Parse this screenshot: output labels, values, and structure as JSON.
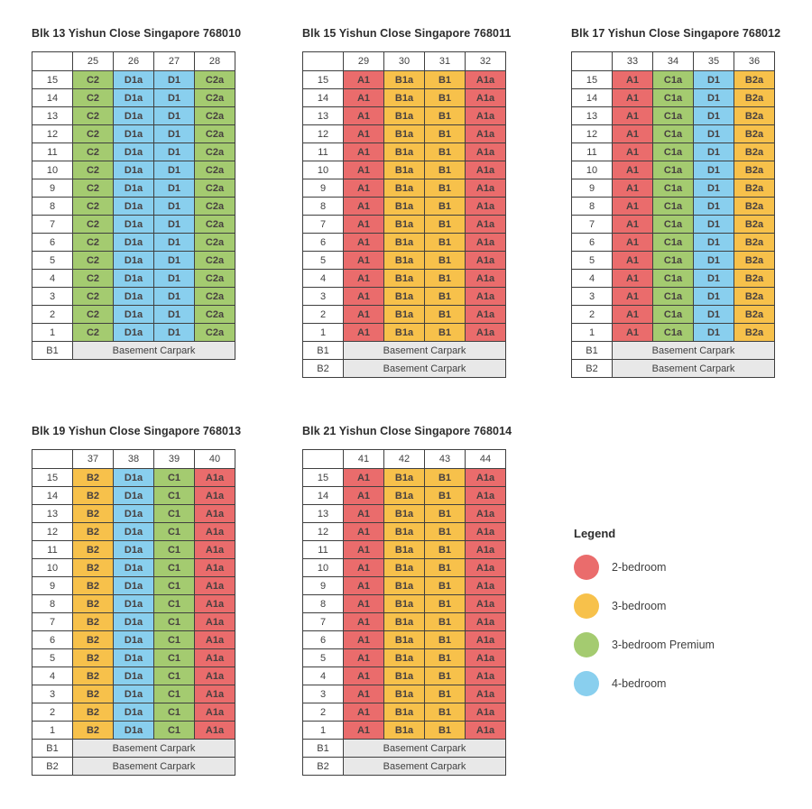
{
  "page": {
    "background": "#ffffff"
  },
  "palette": {
    "red": "#ea6c6c",
    "yellow": "#f7c14b",
    "green": "#a4cb70",
    "blue": "#89cfee",
    "carpark_gray": "#e8e8e8",
    "border": "#3f3f3f"
  },
  "floors": [
    "15",
    "14",
    "13",
    "12",
    "11",
    "10",
    "9",
    "8",
    "7",
    "6",
    "5",
    "4",
    "3",
    "2",
    "1"
  ],
  "basement_text": "Basement Carpark",
  "blocks": [
    {
      "title": "Blk 13 Yishun Close Singapore 768010",
      "stacks": [
        "25",
        "26",
        "27",
        "28"
      ],
      "unit_types": [
        "C2",
        "D1a",
        "D1",
        "C2a"
      ],
      "unit_colors": [
        "green",
        "blue",
        "blue",
        "green"
      ],
      "basement_levels": [
        "B1"
      ]
    },
    {
      "title": "Blk 15 Yishun Close Singapore 768011",
      "stacks": [
        "29",
        "30",
        "31",
        "32"
      ],
      "unit_types": [
        "A1",
        "B1a",
        "B1",
        "A1a"
      ],
      "unit_colors": [
        "red",
        "yellow",
        "yellow",
        "red"
      ],
      "basement_levels": [
        "B1",
        "B2"
      ]
    },
    {
      "title": "Blk 17 Yishun Close Singapore 768012",
      "stacks": [
        "33",
        "34",
        "35",
        "36"
      ],
      "unit_types": [
        "A1",
        "C1a",
        "D1",
        "B2a"
      ],
      "unit_colors": [
        "red",
        "green",
        "blue",
        "yellow"
      ],
      "basement_levels": [
        "B1",
        "B2"
      ]
    },
    {
      "title": "Blk 19 Yishun Close Singapore 768013",
      "stacks": [
        "37",
        "38",
        "39",
        "40"
      ],
      "unit_types": [
        "B2",
        "D1a",
        "C1",
        "A1a"
      ],
      "unit_colors": [
        "yellow",
        "blue",
        "green",
        "red"
      ],
      "basement_levels": [
        "B1",
        "B2"
      ]
    },
    {
      "title": "Blk 21 Yishun Close Singapore 768014",
      "stacks": [
        "41",
        "42",
        "43",
        "44"
      ],
      "unit_types": [
        "A1",
        "B1a",
        "B1",
        "A1a"
      ],
      "unit_colors": [
        "red",
        "yellow",
        "yellow",
        "red"
      ],
      "basement_levels": [
        "B1",
        "B2"
      ]
    }
  ],
  "legend": {
    "title": "Legend",
    "items": [
      {
        "label": "2-bedroom",
        "color_key": "red"
      },
      {
        "label": "3-bedroom",
        "color_key": "yellow"
      },
      {
        "label": "3-bedroom Premium",
        "color_key": "green"
      },
      {
        "label": "4-bedroom",
        "color_key": "blue"
      }
    ]
  }
}
